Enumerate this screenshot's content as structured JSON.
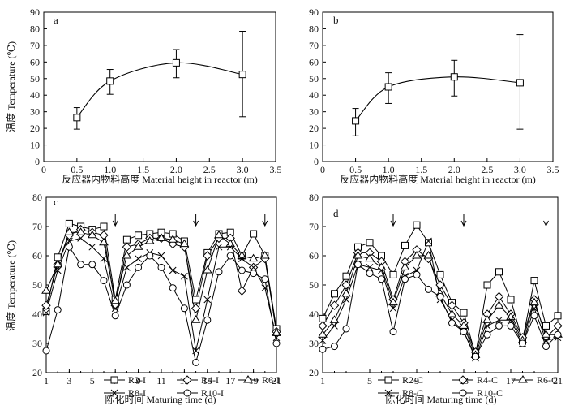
{
  "chart_data": [
    {
      "type": "line",
      "panel_label": "a",
      "xlabel": "反应器内物料高度 Material height in reactor (m)",
      "ylabel": "温度 Temperature (℃)",
      "xlim": [
        0,
        3.5
      ],
      "ylim": [
        0,
        90
      ],
      "xticks": [
        "0",
        "0.5",
        "1.0",
        "1.5",
        "2.0",
        "2.5",
        "3.0",
        "3.5"
      ],
      "yticks": [
        "0",
        "10",
        "20",
        "30",
        "40",
        "50",
        "60",
        "70",
        "80",
        "90"
      ],
      "grid": false,
      "series": [
        {
          "marker": "square",
          "x": [
            0.5,
            1.0,
            2.0,
            3.0
          ],
          "values": [
            26.5,
            48.5,
            59.5,
            52.5
          ],
          "err_low": [
            19.5,
            40.5,
            50.5,
            27
          ],
          "err_high": [
            32.5,
            55.5,
            67.5,
            78.5
          ]
        }
      ]
    },
    {
      "type": "line",
      "panel_label": "b",
      "xlabel": "反应器内物料高度 Material height in reactor (m)",
      "ylabel": "",
      "xlim": [
        0,
        3.5
      ],
      "ylim": [
        0,
        90
      ],
      "xticks": [
        "0",
        "0.5",
        "1.0",
        "1.5",
        "2.0",
        "2.5",
        "3.0",
        "3.5"
      ],
      "yticks": [
        "0",
        "10",
        "20",
        "30",
        "40",
        "50",
        "60",
        "70",
        "80",
        "90"
      ],
      "grid": false,
      "series": [
        {
          "marker": "square",
          "x": [
            0.5,
            1.0,
            2.0,
            3.0
          ],
          "values": [
            24.5,
            45,
            51,
            47.5
          ],
          "err_low": [
            15.5,
            35,
            39.5,
            19.5
          ],
          "err_high": [
            32,
            53.5,
            61,
            76.5
          ]
        }
      ]
    },
    {
      "type": "line",
      "panel_label": "c",
      "xlabel": "陈化时间 Maturing time (d)",
      "ylabel": "温度 Temperature (℃)",
      "xlim": [
        1,
        21
      ],
      "ylim": [
        20,
        80
      ],
      "xticks": [
        "1",
        "3",
        "5",
        "7",
        "9",
        "11",
        "13",
        "15",
        "17",
        "19",
        "21"
      ],
      "yticks": [
        "20",
        "30",
        "40",
        "50",
        "60",
        "70",
        "80"
      ],
      "grid": false,
      "arrows_at_day": [
        7,
        14,
        20
      ],
      "legend_position": "bottom-center",
      "x": [
        1,
        2,
        3,
        4,
        5,
        6,
        7,
        8,
        9,
        10,
        11,
        12,
        13,
        14,
        15,
        16,
        17,
        18,
        19,
        20,
        21
      ],
      "series": [
        {
          "name": "R2-I",
          "marker": "square",
          "values": [
            41,
            59.5,
            71,
            70,
            69,
            70,
            45,
            65.5,
            67,
            67.5,
            68,
            67.5,
            65,
            45,
            61,
            67.5,
            68,
            60,
            67.5,
            60,
            35
          ]
        },
        {
          "name": "R4-I",
          "marker": "diamond",
          "values": [
            43,
            57,
            67,
            69,
            68,
            67,
            43,
            63,
            64,
            66,
            66,
            64,
            63,
            42,
            60,
            66,
            66,
            48,
            56,
            59,
            34
          ]
        },
        {
          "name": "R6-I",
          "marker": "triangle",
          "values": [
            48,
            57,
            68,
            68,
            67,
            64.5,
            44.5,
            60,
            63,
            65,
            66,
            65.5,
            64,
            38,
            55,
            67,
            64,
            60,
            59,
            60,
            33.5
          ]
        },
        {
          "name": "R8-I",
          "marker": "x",
          "values": [
            40.5,
            55,
            65,
            66,
            63,
            59,
            42,
            56,
            59,
            61,
            60,
            55,
            53,
            27.5,
            45,
            63,
            63,
            59,
            56,
            49,
            32
          ]
        },
        {
          "name": "R10-I",
          "marker": "circle",
          "values": [
            27.5,
            41.5,
            63,
            57,
            57,
            51.5,
            39.5,
            50,
            56,
            60,
            56,
            49,
            42,
            23.5,
            38,
            54.5,
            60,
            55,
            54,
            52,
            30
          ]
        }
      ]
    },
    {
      "type": "line",
      "panel_label": "d",
      "xlabel": "陈化时间 Maturing time (d)",
      "ylabel": "",
      "xlim": [
        1,
        21
      ],
      "ylim": [
        20,
        80
      ],
      "xticks": [
        "1",
        "5",
        "9",
        "13",
        "17",
        "21"
      ],
      "yticks": [
        "20",
        "30",
        "40",
        "50",
        "60",
        "70",
        "80"
      ],
      "grid": false,
      "arrows_at_day": [
        7,
        13,
        20
      ],
      "legend_position": "bottom-center",
      "x": [
        1,
        2,
        3,
        4,
        5,
        6,
        7,
        8,
        9,
        10,
        11,
        12,
        13,
        14,
        15,
        16,
        17,
        18,
        19,
        20,
        21
      ],
      "series": [
        {
          "name": "R2-C",
          "marker": "square",
          "values": [
            38.5,
            47,
            53,
            63,
            64.5,
            60,
            53.5,
            63.5,
            70.5,
            64.5,
            53.5,
            44,
            40.5,
            26,
            50,
            54.5,
            45,
            31,
            51.5,
            36,
            39.5
          ]
        },
        {
          "name": "R4-C",
          "marker": "diamond",
          "values": [
            36,
            43,
            50,
            61,
            61,
            58,
            45,
            58,
            62,
            59,
            50,
            43,
            37,
            27,
            40,
            46,
            40,
            32,
            45,
            32,
            36
          ]
        },
        {
          "name": "R6-C",
          "marker": "triangle",
          "values": [
            33,
            38,
            47,
            60,
            59,
            56,
            44,
            56,
            60,
            60,
            47,
            40,
            36,
            26,
            38,
            43,
            39,
            31,
            44,
            33,
            33
          ]
        },
        {
          "name": "R8-C",
          "marker": "x",
          "values": [
            31,
            36,
            45,
            57,
            56,
            55,
            42,
            53,
            55,
            65,
            45,
            38,
            34,
            25,
            36,
            38,
            38,
            30,
            42,
            31,
            32
          ]
        },
        {
          "name": "R10-C",
          "marker": "circle",
          "values": [
            28,
            29,
            35,
            57,
            54,
            52,
            34,
            52,
            53.5,
            48.5,
            46,
            37,
            34,
            25.5,
            33,
            36,
            36,
            30,
            39.5,
            29,
            33
          ]
        }
      ]
    }
  ]
}
